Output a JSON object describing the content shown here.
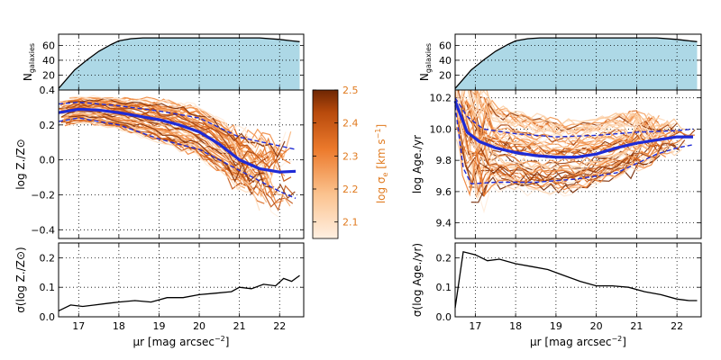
{
  "colors": {
    "fill": "#add8e6",
    "mean": "#1f2bd6",
    "spread": "#1f2bd6",
    "cb_low": "#fde8d6",
    "cb_high": "#7a2a04",
    "cb_text": "#e07a1f"
  },
  "chart_data": [
    {
      "type": "area",
      "name": "ngal-left",
      "ylabel_main": "N",
      "ylabel_sub": "galaxies",
      "x": [
        16.5,
        16.9,
        17.2,
        17.5,
        17.8,
        18.0,
        18.3,
        18.6,
        19.0,
        19.5,
        20.0,
        20.5,
        21.0,
        21.5,
        22.0,
        22.3,
        22.5
      ],
      "y": [
        2,
        27,
        40,
        52,
        61,
        66,
        69,
        70,
        70,
        70,
        70,
        70,
        70,
        70,
        68,
        66,
        65
      ],
      "xlim": [
        16.5,
        22.6
      ],
      "ylim": [
        0,
        75
      ],
      "yticks": [
        20,
        40,
        60
      ]
    },
    {
      "type": "line",
      "name": "metallicity-profiles",
      "ylabel": "log Z./Z⊙",
      "xlim": [
        16.5,
        22.6
      ],
      "ylim": [
        -0.45,
        0.4
      ],
      "yticks": [
        -0.4,
        -0.2,
        0.0,
        0.2,
        0.4
      ],
      "yticklabels": [
        "−0.4",
        "−0.2",
        "0.0",
        "0.2",
        "0.4"
      ],
      "mean": {
        "x": [
          16.5,
          17.0,
          17.5,
          18.0,
          18.5,
          19.0,
          19.5,
          20.0,
          20.5,
          21.0,
          21.5,
          22.0,
          22.4
        ],
        "y": [
          0.27,
          0.29,
          0.285,
          0.27,
          0.25,
          0.23,
          0.2,
          0.16,
          0.09,
          0.0,
          -0.05,
          -0.07,
          -0.065
        ]
      },
      "upper": {
        "x": [
          16.5,
          17.0,
          18.0,
          19.0,
          20.0,
          21.0,
          22.0,
          22.4
        ],
        "y": [
          0.32,
          0.33,
          0.31,
          0.28,
          0.24,
          0.13,
          0.08,
          0.06
        ]
      },
      "lower": {
        "x": [
          16.5,
          17.0,
          18.0,
          19.0,
          20.0,
          21.0,
          22.0,
          22.4
        ],
        "y": [
          0.22,
          0.24,
          0.2,
          0.12,
          0.06,
          -0.06,
          -0.18,
          -0.22
        ]
      },
      "galaxy_lines": {
        "count": 60,
        "note": "individual galaxy profiles coloured by log sigma_e"
      }
    },
    {
      "type": "line",
      "name": "metallicity-scatter",
      "ylabel": "σ(log Z./Z⊙)",
      "x": [
        16.5,
        16.8,
        17.1,
        17.4,
        17.7,
        18.0,
        18.4,
        18.8,
        19.2,
        19.6,
        20.0,
        20.4,
        20.8,
        21.0,
        21.3,
        21.6,
        21.9,
        22.1,
        22.3,
        22.5
      ],
      "y": [
        0.02,
        0.04,
        0.035,
        0.04,
        0.045,
        0.05,
        0.055,
        0.05,
        0.065,
        0.065,
        0.075,
        0.08,
        0.085,
        0.1,
        0.095,
        0.11,
        0.105,
        0.13,
        0.12,
        0.14
      ],
      "xlim": [
        16.5,
        22.6
      ],
      "ylim": [
        0,
        0.25
      ],
      "yticks": [
        0.0,
        0.1,
        0.2
      ],
      "yticklabels": [
        "0.0",
        "0.1",
        "0.2"
      ],
      "xticks": [
        17,
        18,
        19,
        20,
        21,
        22
      ],
      "xlabel_main": "μr [mag arcsec",
      "xlabel_sup": "−2",
      "xlabel_end": "]"
    },
    {
      "type": "area",
      "name": "ngal-right",
      "ylabel_main": "N",
      "ylabel_sub": "galaxies",
      "x": [
        16.5,
        16.9,
        17.2,
        17.5,
        17.8,
        18.0,
        18.3,
        18.6,
        19.0,
        19.5,
        20.0,
        20.5,
        21.0,
        21.5,
        22.0,
        22.3,
        22.5
      ],
      "y": [
        2,
        27,
        40,
        52,
        61,
        66,
        69,
        70,
        70,
        70,
        70,
        70,
        70,
        70,
        68,
        66,
        65
      ],
      "xlim": [
        16.5,
        22.6
      ],
      "ylim": [
        0,
        75
      ],
      "yticks": [
        20,
        40,
        60
      ]
    },
    {
      "type": "line",
      "name": "age-profiles",
      "ylabel": "log Age./yr",
      "xlim": [
        16.5,
        22.6
      ],
      "ylim": [
        9.3,
        10.25
      ],
      "yticks": [
        9.4,
        9.6,
        9.8,
        10.0,
        10.2
      ],
      "yticklabels": [
        "9.4",
        "9.6",
        "9.8",
        "10.0",
        "10.2"
      ],
      "mean": {
        "x": [
          16.5,
          16.8,
          17.1,
          17.5,
          18.0,
          18.5,
          19.0,
          19.5,
          20.0,
          20.5,
          21.0,
          21.5,
          22.0,
          22.4
        ],
        "y": [
          10.18,
          9.98,
          9.92,
          9.88,
          9.85,
          9.83,
          9.82,
          9.82,
          9.84,
          9.88,
          9.91,
          9.93,
          9.95,
          9.95
        ]
      },
      "upper": {
        "x": [
          16.5,
          16.8,
          17.2,
          18.0,
          19.0,
          20.0,
          21.0,
          22.0,
          22.4
        ],
        "y": [
          10.2,
          10.08,
          10.0,
          9.97,
          9.95,
          9.96,
          9.98,
          9.99,
          10.0
        ]
      },
      "lower": {
        "x": [
          16.5,
          16.7,
          16.9,
          17.5,
          18.5,
          19.5,
          20.5,
          21.0,
          21.5,
          22.0,
          22.4
        ],
        "y": [
          10.15,
          9.75,
          9.65,
          9.66,
          9.66,
          9.68,
          9.72,
          9.78,
          9.84,
          9.88,
          9.9
        ]
      },
      "galaxy_lines": {
        "count": 60,
        "note": "individual galaxy profiles coloured by log sigma_e"
      }
    },
    {
      "type": "line",
      "name": "age-scatter",
      "ylabel": "σ(log Age./yr)",
      "x": [
        16.5,
        16.7,
        17.0,
        17.3,
        17.6,
        18.0,
        18.4,
        18.8,
        19.2,
        19.6,
        20.0,
        20.4,
        20.8,
        21.2,
        21.6,
        22.0,
        22.3,
        22.5
      ],
      "y": [
        0.03,
        0.22,
        0.21,
        0.19,
        0.195,
        0.18,
        0.17,
        0.16,
        0.14,
        0.12,
        0.105,
        0.105,
        0.1,
        0.085,
        0.075,
        0.06,
        0.055,
        0.055
      ],
      "xlim": [
        16.5,
        22.6
      ],
      "ylim": [
        0,
        0.25
      ],
      "yticks": [
        0.0,
        0.1,
        0.2
      ],
      "yticklabels": [
        "0.0",
        "0.1",
        "0.2"
      ],
      "xticks": [
        17,
        18,
        19,
        20,
        21,
        22
      ],
      "xlabel_main": "μr [mag arcsec",
      "xlabel_sup": "−2",
      "xlabel_end": "]"
    }
  ],
  "colorbar": {
    "label_main": "log σ",
    "label_sub": "e",
    "label_unit": " [km s",
    "label_sup": "−1",
    "label_end": "]",
    "range": [
      2.05,
      2.5
    ],
    "ticks": [
      2.1,
      2.2,
      2.3,
      2.4,
      2.5
    ]
  },
  "xticklabels": [
    "17",
    "18",
    "19",
    "20",
    "21",
    "22"
  ],
  "ngal_yticklabels": [
    "20",
    "40",
    "60"
  ]
}
